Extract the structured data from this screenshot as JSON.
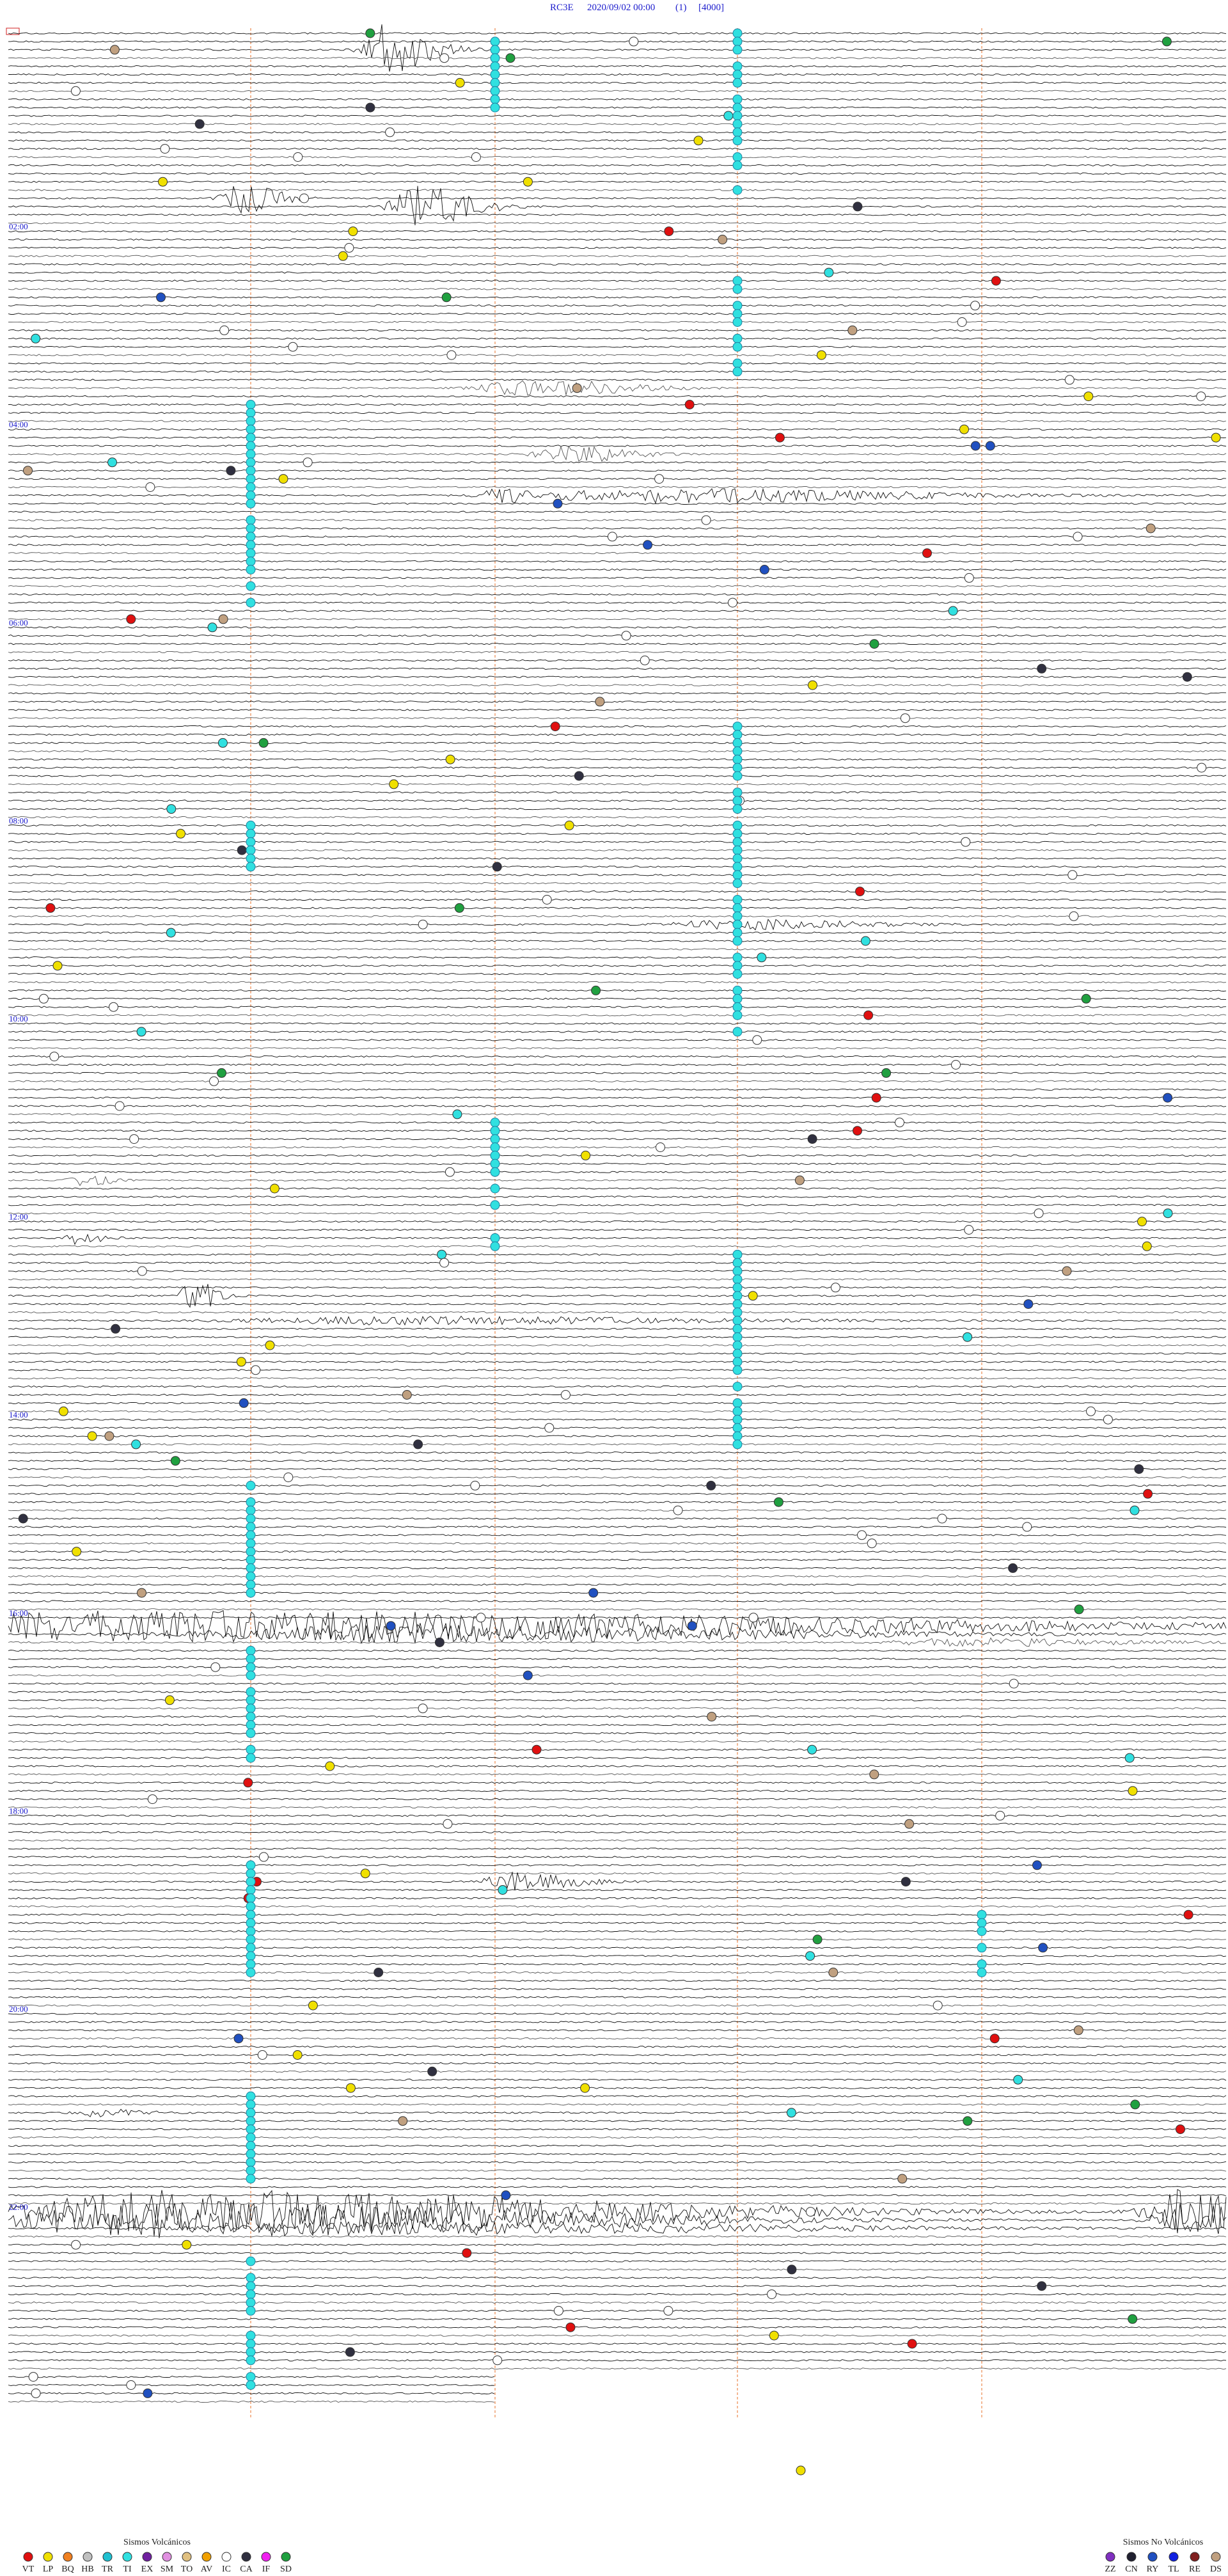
{
  "header": {
    "station": "RC3E",
    "datetime": "2020/09/02 00:00",
    "channel": "(1)",
    "scale": "[4000]"
  },
  "time_labels": [
    "02:00",
    "04:00",
    "06:00",
    "08:00",
    "10:00",
    "12:00",
    "14:00",
    "16:00",
    "18:00",
    "20:00",
    "22:00"
  ],
  "legend": {
    "volcanic": {
      "title": "Sismos Volcánicos",
      "items": [
        {
          "label": "VT",
          "color": "#e01010"
        },
        {
          "label": "LP",
          "color": "#f0e000"
        },
        {
          "label": "BQ",
          "color": "#f08020"
        },
        {
          "label": "HB",
          "color": "#c0c0c0"
        },
        {
          "label": "TR",
          "color": "#20c0d0"
        },
        {
          "label": "TI",
          "color": "#30e0e0"
        },
        {
          "label": "EX",
          "color": "#7020a0"
        },
        {
          "label": "SM",
          "color": "#e090e0"
        },
        {
          "label": "TO",
          "color": "#e0c080"
        },
        {
          "label": "AV",
          "color": "#f0a000"
        },
        {
          "label": "IC",
          "color": "#ffffff"
        },
        {
          "label": "CA",
          "color": "#303040"
        },
        {
          "label": "IF",
          "color": "#f020f0"
        },
        {
          "label": "SD",
          "color": "#20a040"
        }
      ]
    },
    "non_volcanic": {
      "title": "Sismos No Volcánicos",
      "items": [
        {
          "label": "ZZ",
          "color": "#8030c0"
        },
        {
          "label": "CN",
          "color": "#202030"
        },
        {
          "label": "RY",
          "color": "#2050c0"
        },
        {
          "label": "TL",
          "color": "#1020e0"
        },
        {
          "label": "RE",
          "color": "#802020"
        },
        {
          "label": "DS",
          "color": "#c0a080"
        }
      ]
    }
  }
}
